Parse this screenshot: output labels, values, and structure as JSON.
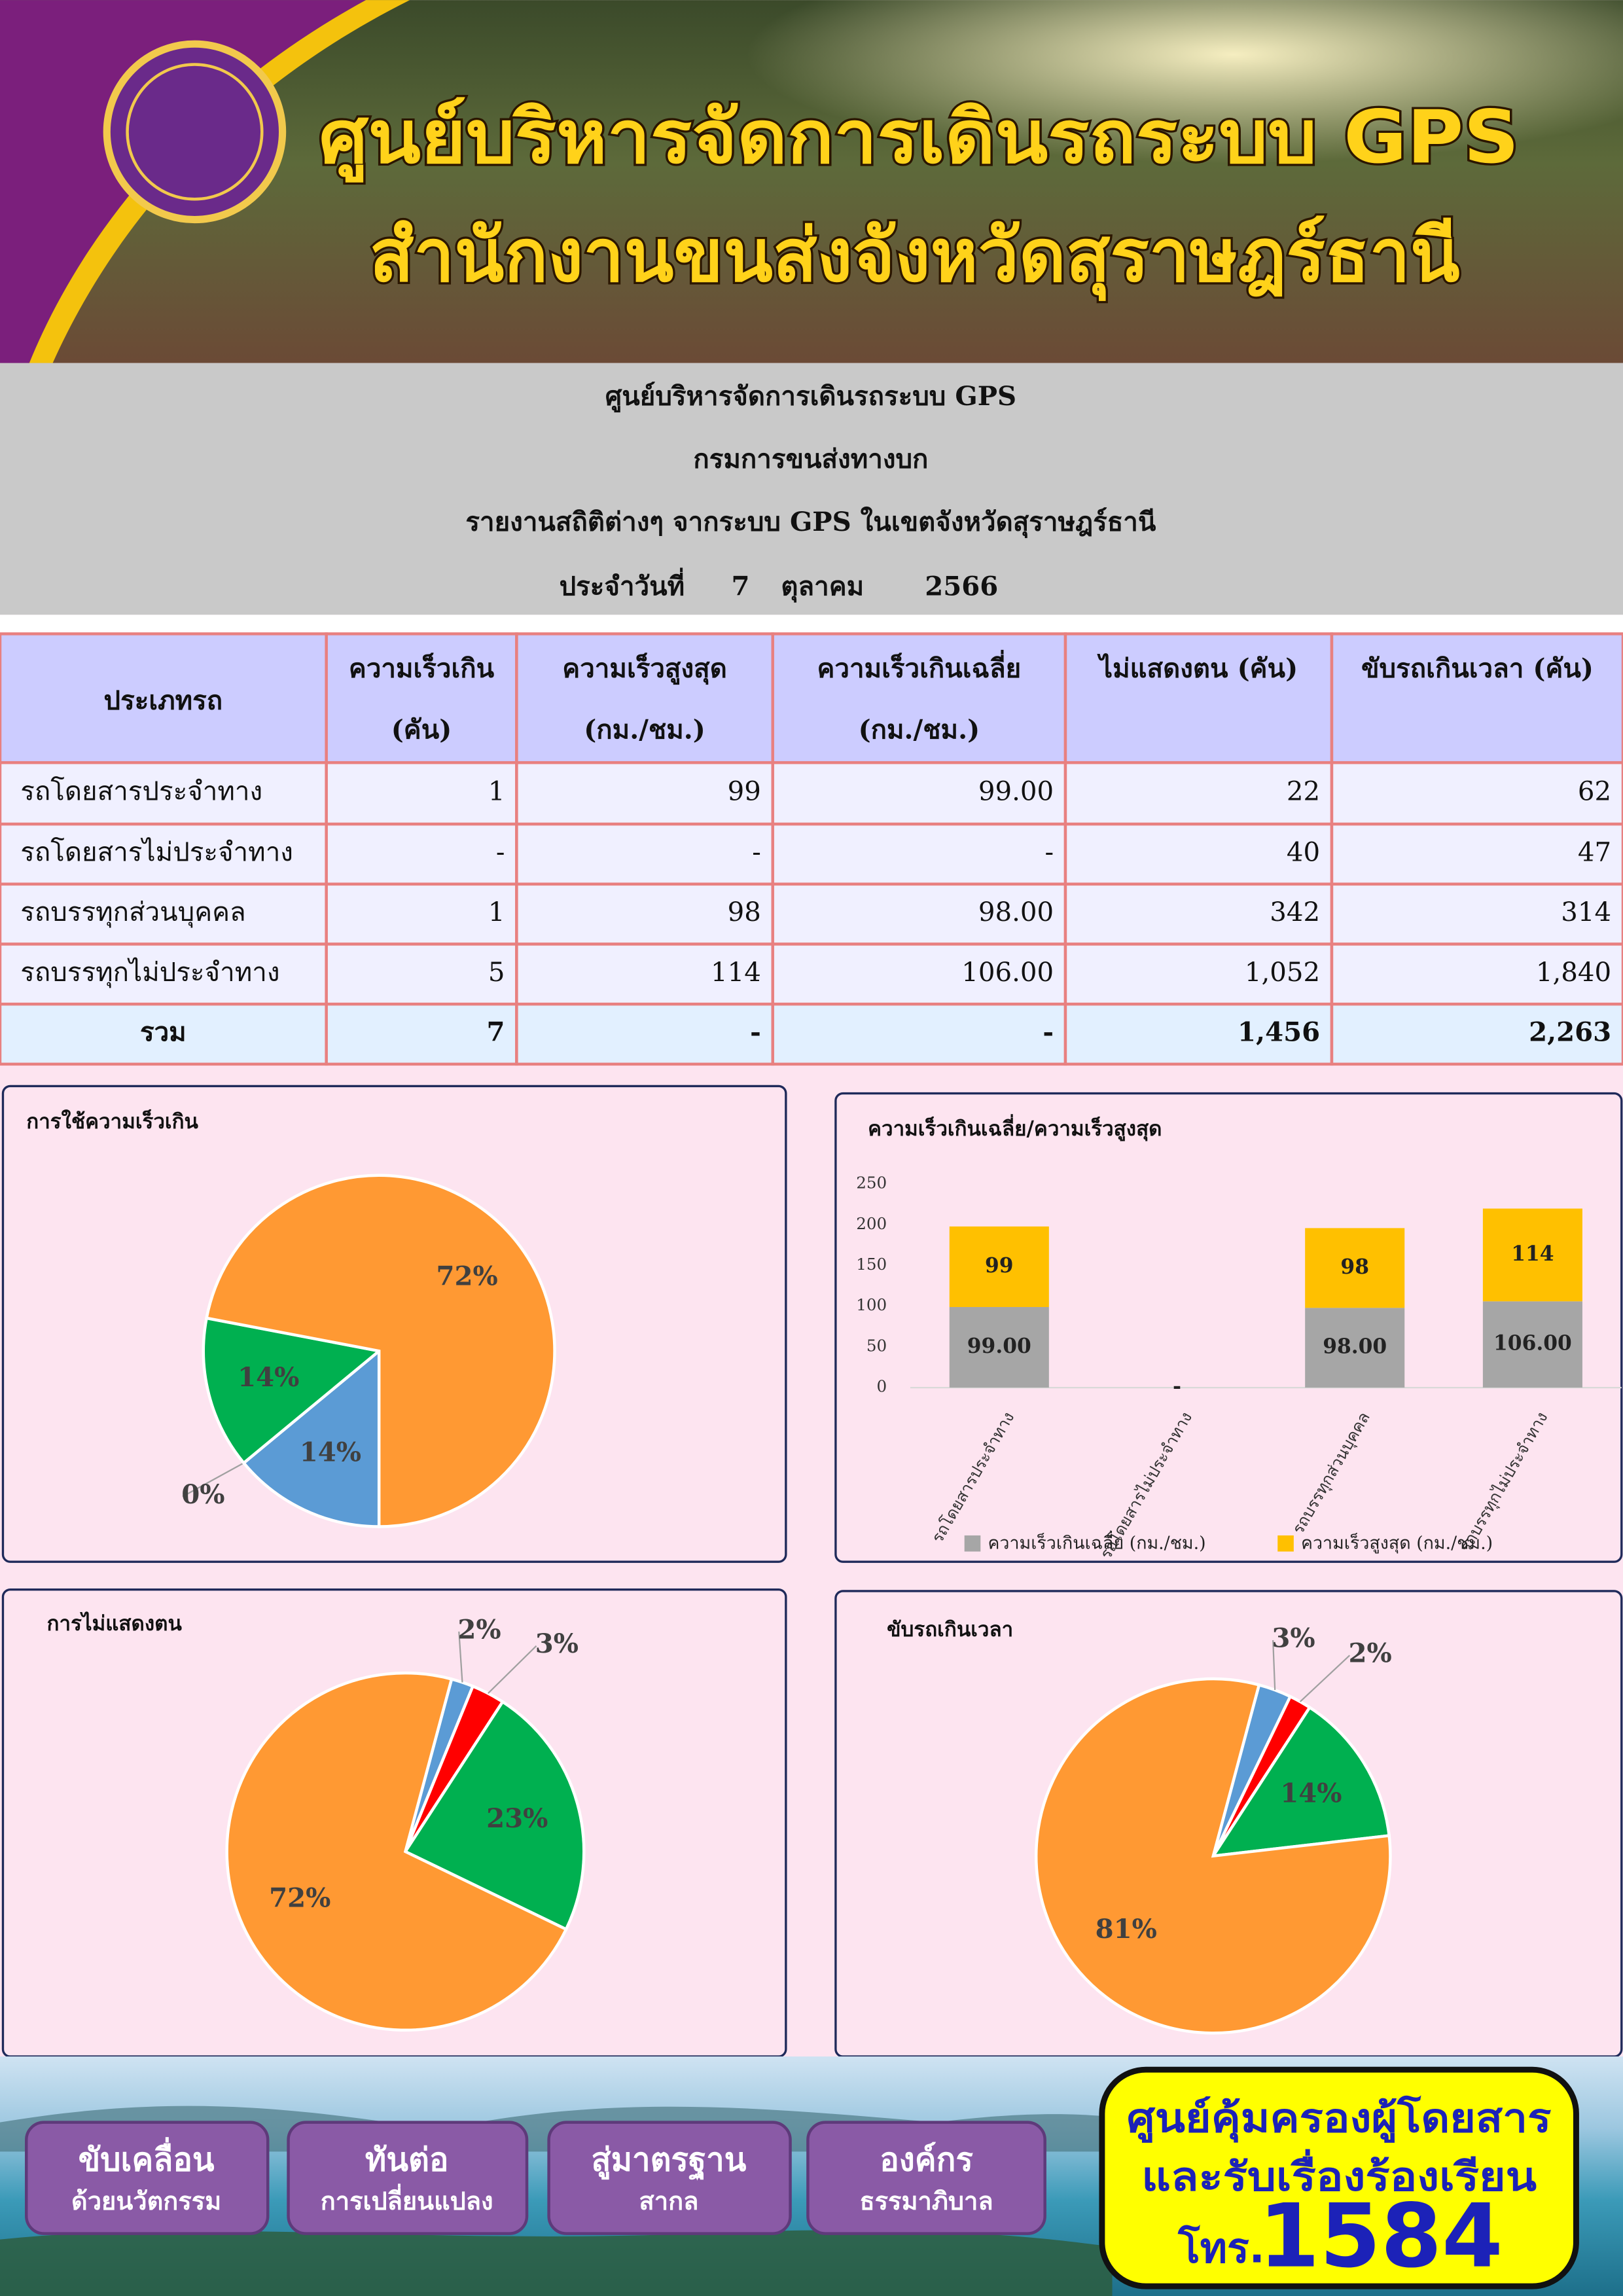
{
  "header": {
    "title": "ศูนย์บริหารจัดการเดินรถระบบ GPS",
    "subtitle": "สำนักงานขนส่งจังหวัดสุราษฎร์ธานี"
  },
  "report": {
    "lines": [
      "ศูนย์บริหารจัดการเดินรถระบบ GPS",
      "กรมการขนส่งทางบก",
      "รายงานสถิติต่างๆ จากระบบ GPS ในเขตจังหวัดสุราษฎร์ธานี"
    ],
    "date": [
      "ประจำวันที่",
      "7",
      "ตุลาคม",
      "2566"
    ]
  },
  "table": {
    "header": [
      [
        "ประเภทรถ"
      ],
      [
        "ความเร็วเกิน",
        "(คัน)"
      ],
      [
        "ความเร็วสูงสุด",
        "(กม./ชม.)"
      ],
      [
        "ความเร็วเกินเฉลี่ย",
        "(กม./ชม.)"
      ],
      [
        "ไม่แสดงตน (คัน)"
      ],
      [
        "ขับรถเกินเวลา (คัน)"
      ]
    ],
    "rows": [
      [
        "รถโดยสารประจำทาง",
        "1",
        "99",
        "99.00",
        "22",
        "62"
      ],
      [
        "รถโดยสารไม่ประจำทาง",
        "-",
        "-",
        "-",
        "40",
        "47"
      ],
      [
        "รถบรรทุกส่วนบุคคล",
        "1",
        "98",
        "98.00",
        "342",
        "314"
      ],
      [
        "รถบรรทุกไม่ประจำทาง",
        "5",
        "114",
        "106.00",
        "1,052",
        "1,840"
      ],
      [
        "รวม",
        "7",
        "-",
        "-",
        "1,456",
        "2,263"
      ]
    ]
  },
  "chart_data": [
    {
      "type": "pie",
      "title": "การใช้ความเร็วเกิน",
      "values": [
        14,
        0,
        14,
        72
      ],
      "value_labels": [
        "14%",
        "0%",
        "14%",
        "72%"
      ],
      "colors": [
        "#5b9bd5",
        "#ff0000",
        "#00b050",
        "#ff9933"
      ]
    },
    {
      "type": "bar",
      "stacked": true,
      "title": "ความเร็วเกินเฉลี่ย/ความเร็วสูงสุด",
      "categories": [
        "รถโดยสารประจำทาง",
        "รถโดยสารไม่ประจำทาง",
        "รถบรรทุกส่วนบุคคล",
        "รถบรรทุกไม่ประจำทาง"
      ],
      "series": [
        {
          "name": "ความเร็วเกินเฉลี่ย (กม./ชม.)",
          "color": "#a6a6a6",
          "values": [
            99,
            null,
            98,
            106
          ],
          "value_labels": [
            "99.00",
            "-",
            "98.00",
            "106.00"
          ]
        },
        {
          "name": "ความเร็วสูงสุด (กม./ชม.)",
          "color": "#ffc000",
          "values": [
            99,
            null,
            98,
            114
          ]
        }
      ],
      "ylim": [
        0,
        250
      ],
      "yticks": [
        0,
        50,
        100,
        150,
        200,
        250
      ],
      "legend": "bottom"
    },
    {
      "type": "pie",
      "title": "การไม่แสดงตน",
      "values": [
        2,
        3,
        23,
        72
      ],
      "value_labels": [
        "2%",
        "3%",
        "23%",
        "72%"
      ],
      "colors": [
        "#5b9bd5",
        "#ff0000",
        "#00b050",
        "#ff9933"
      ]
    },
    {
      "type": "pie",
      "title": "ขับรถเกินเวลา",
      "values": [
        3,
        2,
        14,
        81
      ],
      "value_labels": [
        "3%",
        "2%",
        "14%",
        "81%"
      ],
      "colors": [
        "#5b9bd5",
        "#ff0000",
        "#00b050",
        "#ff9933"
      ]
    }
  ],
  "footer": {
    "buttons": [
      [
        "ขับเคลื่อน",
        "ด้วยนวัตกรรม"
      ],
      [
        "ทันต่อ",
        "การเปลี่ยนแปลง"
      ],
      [
        "สู่มาตรฐาน",
        "สากล"
      ],
      [
        "องค์กร",
        "ธรรมาภิบาล"
      ]
    ],
    "hotline": [
      "ศูนย์คุ้มครองผู้โดยสาร",
      "และรับเรื่องร้องเรียน",
      "โทร.",
      "1584"
    ]
  }
}
